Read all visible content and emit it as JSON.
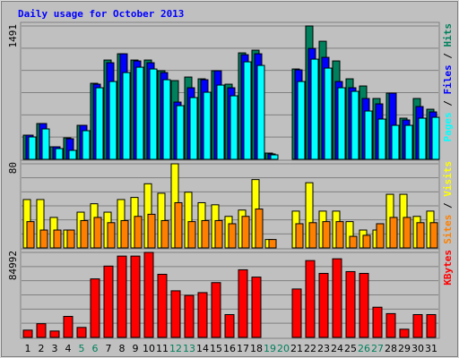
{
  "title": "Daily usage for October 2013",
  "legend_separator": " / ",
  "weekend_color": "#00805c",
  "highlighted_categories": [
    4,
    5,
    11,
    12,
    18,
    19,
    25,
    26
  ],
  "chart_data": [
    {
      "type": "bar",
      "ylim": [
        0,
        1491
      ],
      "yticks": [
        1491
      ],
      "grid": true,
      "series": [
        {
          "name": "Pages",
          "color": "#00ffff",
          "values": [
            250,
            340,
            120,
            100,
            320,
            800,
            870,
            970,
            1030,
            1010,
            890,
            600,
            690,
            750,
            830,
            710,
            1090,
            1050,
            50,
            null,
            870,
            1120,
            1020,
            800,
            760,
            540,
            450,
            380,
            380,
            460,
            470
          ]
        },
        {
          "name": "Files",
          "color": "#0000ff",
          "values": [
            270,
            400,
            140,
            230,
            380,
            840,
            1080,
            1180,
            1100,
            1080,
            970,
            640,
            800,
            890,
            990,
            800,
            1170,
            1180,
            60,
            null,
            1000,
            1240,
            1140,
            870,
            800,
            680,
            620,
            740,
            440,
            590,
            530
          ]
        },
        {
          "name": "Hits",
          "color": "#00805c",
          "values": [
            270,
            400,
            140,
            240,
            380,
            850,
            1110,
            1180,
            1110,
            1110,
            990,
            880,
            920,
            900,
            990,
            840,
            1190,
            1220,
            70,
            null,
            1010,
            1491,
            1320,
            1100,
            900,
            820,
            680,
            740,
            460,
            680,
            560
          ]
        }
      ]
    },
    {
      "type": "bar",
      "ylim": [
        0,
        80
      ],
      "yticks": [
        80
      ],
      "grid": true,
      "series": [
        {
          "name": "Sites",
          "color": "#ff8000",
          "values": [
            25,
            17,
            17,
            17,
            26,
            29,
            24,
            26,
            30,
            32,
            26,
            43,
            25,
            26,
            26,
            23,
            30,
            37,
            8,
            null,
            23,
            24,
            25,
            25,
            11,
            12,
            23,
            29,
            29,
            24,
            24
          ]
        },
        {
          "name": "Visits",
          "color": "#ffff00",
          "values": [
            46,
            46,
            29,
            17,
            34,
            42,
            34,
            46,
            48,
            61,
            52,
            80,
            53,
            43,
            41,
            30,
            36,
            65,
            8,
            null,
            35,
            62,
            35,
            35,
            25,
            17,
            17,
            51,
            51,
            30,
            35
          ]
        }
      ]
    },
    {
      "type": "bar",
      "ylim": [
        0,
        84992
      ],
      "yticks": [
        84992
      ],
      "grid": true,
      "categories": [
        "1",
        "2",
        "3",
        "4",
        "5",
        "6",
        "7",
        "8",
        "9",
        "10",
        "11",
        "12",
        "13",
        "14",
        "15",
        "16",
        "17",
        "18",
        "19",
        "20",
        "21",
        "22",
        "23",
        "24",
        "25",
        "26",
        "27",
        "28",
        "29",
        "30",
        "31"
      ],
      "series": [
        {
          "name": "KBytes",
          "color": "#ff0000",
          "values": [
            7300,
            13700,
            6400,
            21000,
            10000,
            58500,
            71300,
            81300,
            81300,
            84992,
            63100,
            46600,
            42000,
            44800,
            54800,
            22800,
            67600,
            60300,
            null,
            null,
            48400,
            76800,
            64000,
            78600,
            65800,
            64000,
            30200,
            23800,
            8200,
            22800,
            22800
          ]
        }
      ]
    }
  ]
}
